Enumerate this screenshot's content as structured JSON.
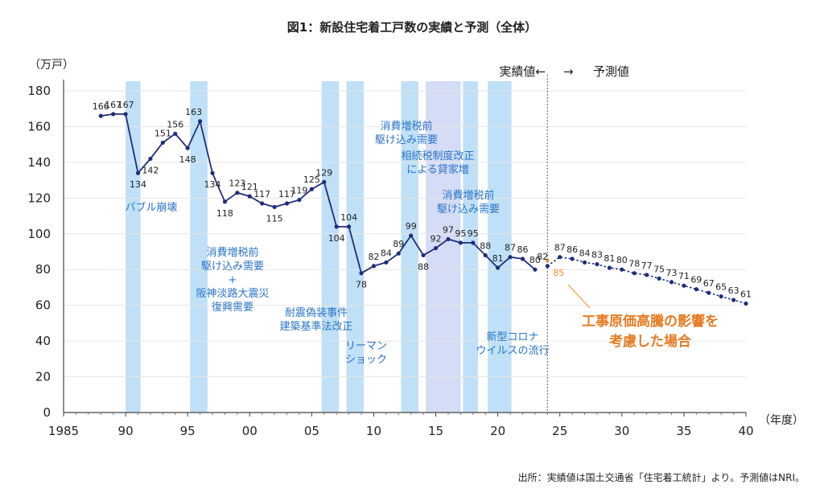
{
  "chart_data": {
    "type": "line",
    "title": "図1：新設住宅着工戸数の実績と予測（全体）",
    "ylabel": "（万戸）",
    "xlabel": "（年度）",
    "ylim": [
      0,
      180
    ],
    "xlim": [
      1985,
      2040
    ],
    "yticks": [
      "0",
      "20",
      "40",
      "60",
      "80",
      "100",
      "120",
      "140",
      "160",
      "180"
    ],
    "xticks": [
      {
        "year": 1985,
        "label": "1985"
      },
      {
        "year": 1990,
        "label": "90"
      },
      {
        "year": 1995,
        "label": "95"
      },
      {
        "year": 2000,
        "label": "00"
      },
      {
        "year": 2005,
        "label": "05"
      },
      {
        "year": 2010,
        "label": "10"
      },
      {
        "year": 2015,
        "label": "15"
      },
      {
        "year": 2020,
        "label": "20"
      },
      {
        "year": 2025,
        "label": "25"
      },
      {
        "year": 2030,
        "label": "30"
      },
      {
        "year": 2035,
        "label": "35"
      },
      {
        "year": 2040,
        "label": "40"
      }
    ],
    "series": [
      {
        "name": "実績値",
        "color": "#1f2d7a",
        "x": [
          1988,
          1989,
          1990,
          1991,
          1992,
          1993,
          1994,
          1995,
          1996,
          1997,
          1998,
          1999,
          2000,
          2001,
          2002,
          2003,
          2004,
          2005,
          2006,
          2007,
          2008,
          2009,
          2010,
          2011,
          2012,
          2013,
          2014,
          2015,
          2016,
          2017,
          2018,
          2019,
          2020,
          2021,
          2022,
          2023
        ],
        "values": [
          166,
          167,
          167,
          134,
          142,
          151,
          156,
          148,
          163,
          134,
          118,
          123,
          121,
          117,
          115,
          117,
          119,
          125,
          129,
          104,
          104,
          78,
          82,
          84,
          89,
          99,
          88,
          92,
          97,
          95,
          95,
          88,
          81,
          87,
          86,
          80
        ],
        "labels": [
          "166",
          "167",
          "167",
          "134",
          "142",
          "151",
          "156",
          "148",
          "163",
          "134",
          "118",
          "123",
          "121",
          "117",
          "115",
          "117",
          "119",
          "125",
          "129",
          "104",
          "104",
          "78",
          "82",
          "84",
          "89",
          "99",
          "88",
          "92",
          "97",
          "95",
          "95",
          "88",
          "81",
          "87",
          "86",
          "80"
        ]
      },
      {
        "name": "予測値",
        "color": "#1f2d7a",
        "x": [
          2024,
          2025,
          2026,
          2027,
          2028,
          2029,
          2030,
          2031,
          2032,
          2033,
          2034,
          2035,
          2036,
          2037,
          2038,
          2039,
          2040
        ],
        "values": [
          82,
          87,
          86,
          84,
          83,
          81,
          80,
          78,
          77,
          75,
          73,
          71,
          69,
          67,
          65,
          63,
          61
        ],
        "labels": [
          "82",
          "87",
          "86",
          "84",
          "83",
          "81",
          "80",
          "78",
          "77",
          "75",
          "73",
          "71",
          "69",
          "67",
          "65",
          "63",
          "61"
        ]
      },
      {
        "name": "工事原価高騰の影響を考慮した場合",
        "color": "#f0922a",
        "x": [
          2024
        ],
        "values": [
          85
        ],
        "labels": [
          "85"
        ]
      }
    ],
    "bands": [
      {
        "start": 1990.0,
        "end": 1991.2,
        "color": "#bfe0f7"
      },
      {
        "start": 1995.2,
        "end": 1996.6,
        "color": "#bfe0f7"
      },
      {
        "start": 2005.8,
        "end": 2007.2,
        "color": "#bfe0f7"
      },
      {
        "start": 2007.8,
        "end": 2009.2,
        "color": "#bfe0f7"
      },
      {
        "start": 2012.2,
        "end": 2013.6,
        "color": "#bfe0f7"
      },
      {
        "start": 2014.2,
        "end": 2017.0,
        "color": "#c9dff6"
      },
      {
        "start": 2014.2,
        "end": 2016.8,
        "color": "#d5dcf6"
      },
      {
        "start": 2017.2,
        "end": 2018.4,
        "color": "#bfe0f7"
      },
      {
        "start": 2019.2,
        "end": 2021.1,
        "color": "#bfe0f7"
      }
    ],
    "annotations": [
      {
        "lines": [
          "バブル崩壊"
        ]
      },
      {
        "lines": [
          "消費増税前",
          "駆け込み需要",
          "+",
          "阪神淡路大震災",
          "復興需要"
        ]
      },
      {
        "lines": [
          "耐震偽装事件",
          "建築基準法改正"
        ]
      },
      {
        "lines": [
          "リーマン",
          "ショック"
        ]
      },
      {
        "lines": [
          "消費増税前",
          "駆け込み需要"
        ]
      },
      {
        "lines": [
          "相続税制度改正",
          "による貸家増"
        ]
      },
      {
        "lines": [
          "消費増税前",
          "駆け込み需要"
        ]
      },
      {
        "lines": [
          "新型コロナ",
          "ウイルスの流行"
        ]
      }
    ],
    "divider": {
      "year": 2024.0,
      "left_label": "実績値←",
      "arrow": "→",
      "right_label": "予測値"
    },
    "orange_note": [
      "工事原価高騰の影響を",
      "考慮した場合"
    ]
  },
  "source": "出所：実績値は国土交通省「住宅着工統計」より。予測値はNRI。"
}
